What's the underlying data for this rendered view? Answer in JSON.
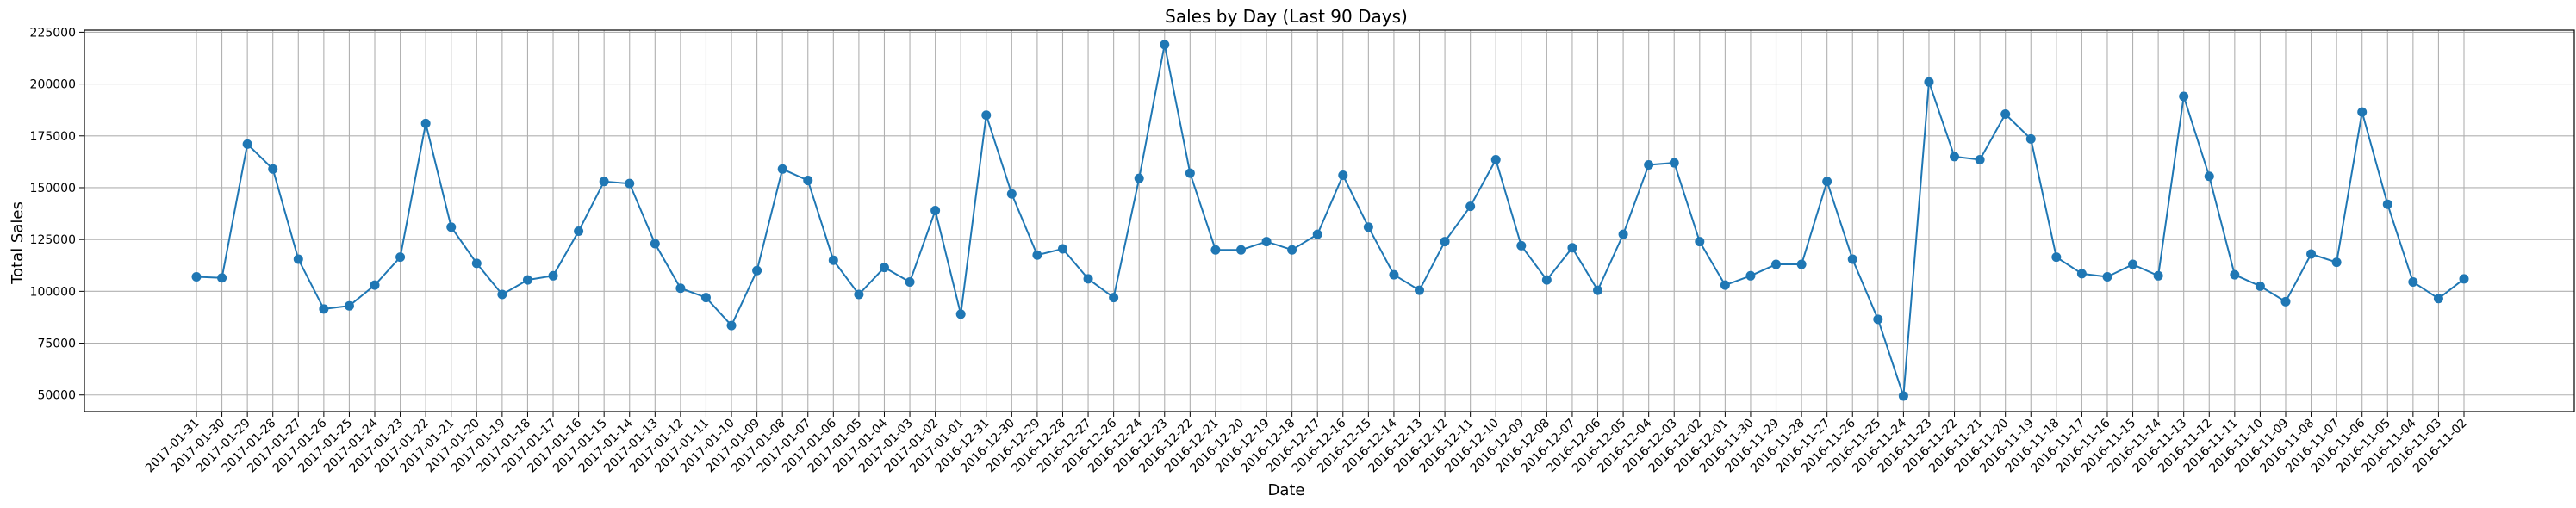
{
  "chart_data": {
    "type": "line",
    "title": "Sales by Day (Last 90 Days)",
    "xlabel": "Date",
    "ylabel": "Total Sales",
    "ylim": [
      42000,
      226000
    ],
    "yticks": [
      50000,
      75000,
      100000,
      125000,
      150000,
      175000,
      200000,
      225000
    ],
    "grid": true,
    "color": "#1f77b4",
    "x": [
      "2017-01-31",
      "2017-01-30",
      "2017-01-29",
      "2017-01-28",
      "2017-01-27",
      "2017-01-26",
      "2017-01-25",
      "2017-01-24",
      "2017-01-23",
      "2017-01-22",
      "2017-01-21",
      "2017-01-20",
      "2017-01-19",
      "2017-01-18",
      "2017-01-17",
      "2017-01-16",
      "2017-01-15",
      "2017-01-14",
      "2017-01-13",
      "2017-01-12",
      "2017-01-11",
      "2017-01-10",
      "2017-01-09",
      "2017-01-08",
      "2017-01-07",
      "2017-01-06",
      "2017-01-05",
      "2017-01-04",
      "2017-01-03",
      "2017-01-02",
      "2017-01-01",
      "2016-12-31",
      "2016-12-30",
      "2016-12-29",
      "2016-12-28",
      "2016-12-27",
      "2016-12-26",
      "2016-12-24",
      "2016-12-23",
      "2016-12-22",
      "2016-12-21",
      "2016-12-20",
      "2016-12-19",
      "2016-12-18",
      "2016-12-17",
      "2016-12-16",
      "2016-12-15",
      "2016-12-14",
      "2016-12-13",
      "2016-12-12",
      "2016-12-11",
      "2016-12-10",
      "2016-12-09",
      "2016-12-08",
      "2016-12-07",
      "2016-12-06",
      "2016-12-05",
      "2016-12-04",
      "2016-12-03",
      "2016-12-02",
      "2016-12-01",
      "2016-11-30",
      "2016-11-29",
      "2016-11-28",
      "2016-11-27",
      "2016-11-26",
      "2016-11-25",
      "2016-11-24",
      "2016-11-23",
      "2016-11-22",
      "2016-11-21",
      "2016-11-20",
      "2016-11-19",
      "2016-11-18",
      "2016-11-17",
      "2016-11-16",
      "2016-11-15",
      "2016-11-14",
      "2016-11-13",
      "2016-11-12",
      "2016-11-11",
      "2016-11-10",
      "2016-11-09",
      "2016-11-08",
      "2016-11-07",
      "2016-11-06",
      "2016-11-05",
      "2016-11-04",
      "2016-11-03",
      "2016-11-02"
    ],
    "y": [
      107000,
      106500,
      171000,
      159000,
      115500,
      91500,
      93000,
      103000,
      116500,
      181000,
      131000,
      113500,
      98500,
      105500,
      107500,
      129000,
      153000,
      152000,
      123000,
      101500,
      97000,
      83500,
      110000,
      159000,
      153500,
      115000,
      98500,
      111500,
      104500,
      139000,
      89000,
      185000,
      147000,
      117500,
      120500,
      106000,
      97000,
      154500,
      219000,
      157000,
      120000,
      120000,
      124000,
      120000,
      127500,
      156000,
      131000,
      108000,
      100500,
      124000,
      141000,
      163500,
      122000,
      105500,
      121000,
      100500,
      127500,
      161000,
      162000,
      124000,
      103000,
      107500,
      113000,
      113000,
      153000,
      115500,
      86500,
      49500,
      201000,
      165000,
      163500,
      185500,
      173500,
      116500,
      108500,
      107000,
      113000,
      107500,
      194000,
      155500,
      108000,
      102500,
      95000,
      118000,
      114000,
      186500,
      142000,
      104500,
      96500,
      106000
    ]
  }
}
